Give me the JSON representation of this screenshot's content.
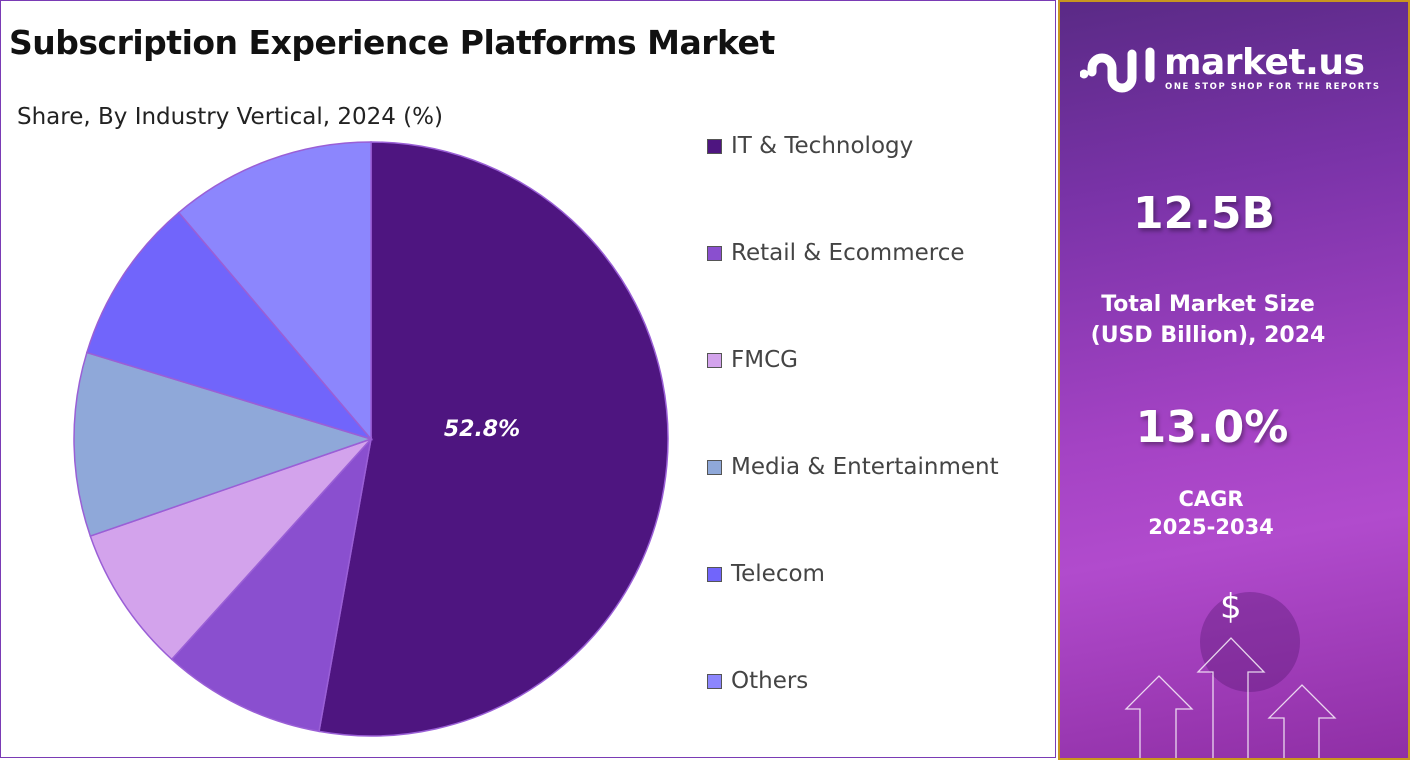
{
  "title": "Subscription Experience Platforms Market",
  "subtitle": "Share, By Industry Vertical, 2024 (%)",
  "chart_data": {
    "type": "pie",
    "title": "Subscription Experience Platforms Market",
    "subtitle": "Share, By Industry Vertical, 2024 (%)",
    "legend_position": "right",
    "start_angle": "top, clockwise",
    "slices": [
      {
        "name": "IT & Technology",
        "value": 52.8,
        "color": "#4e1580",
        "label": "52.8%"
      },
      {
        "name": "Retail & Ecommerce",
        "value": 8.9,
        "color": "#8a4fcf"
      },
      {
        "name": "FMCG",
        "value": 8.0,
        "color": "#d3a3ec"
      },
      {
        "name": "Media & Entertainment",
        "value": 10.0,
        "color": "#8fa8d9"
      },
      {
        "name": "Telecom",
        "value": 9.1,
        "color": "#7165fb"
      },
      {
        "name": "Others",
        "value": 11.2,
        "color": "#8c86fd"
      }
    ]
  },
  "panel": {
    "brand": "market.us",
    "tagline": "ONE STOP SHOP FOR THE REPORTS",
    "market_size": "12.5B",
    "market_size_caption_1": "Total Market Size",
    "market_size_caption_2": "(USD Billion), 2024",
    "cagr": "13.0%",
    "cagr_caption_1": "CAGR",
    "cagr_caption_2": "2025-2034",
    "dollar": "$"
  }
}
